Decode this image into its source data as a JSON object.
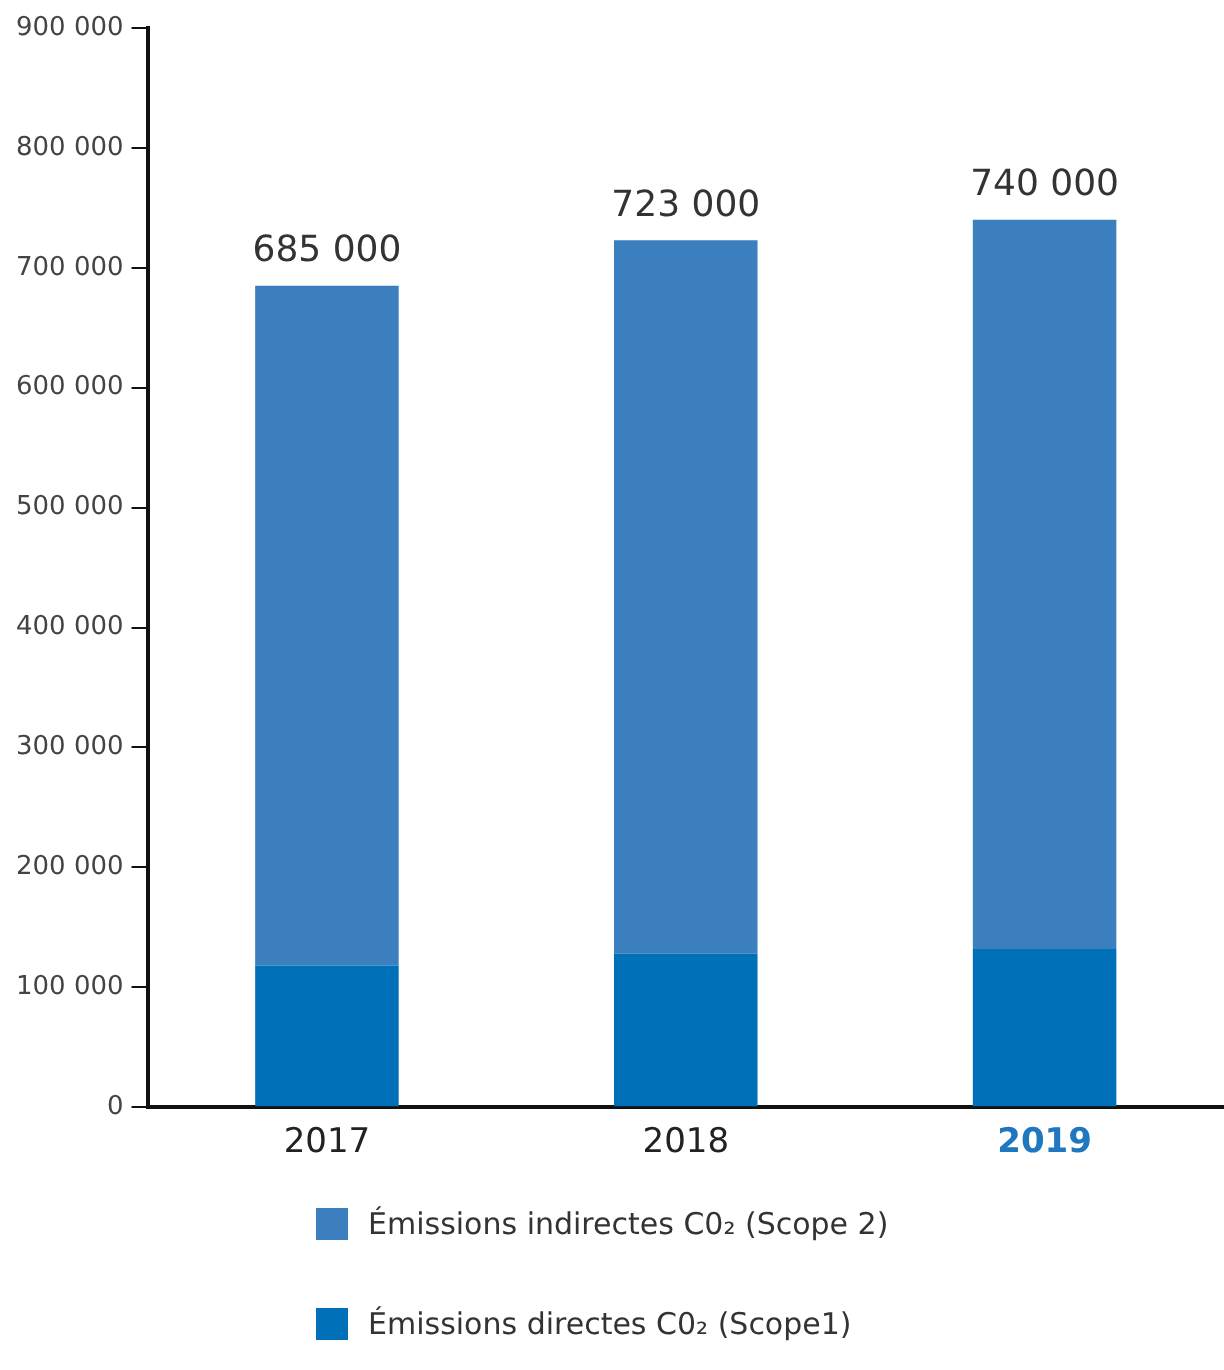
{
  "chart_data": {
    "type": "bar",
    "stacked": true,
    "categories": [
      "2017",
      "2018",
      "2019"
    ],
    "series": [
      {
        "name": "Émissions directes C0₂ (Scope1)",
        "color": "#0070b8",
        "values": [
          118000,
          128000,
          132000
        ]
      },
      {
        "name": "Émissions indirectes C0₂ (Scope 2)",
        "color": "#3b7fbf",
        "values": [
          567000,
          595000,
          608000
        ]
      }
    ],
    "totals": [
      "685 000",
      "723 000",
      "740 000"
    ],
    "ylim": [
      0,
      900000
    ],
    "yticks": [
      0,
      {
        "value": 100000,
        "label": "100 000"
      },
      {
        "value": 200000,
        "label": "200 000"
      },
      {
        "value": 300000,
        "label": "300 000"
      },
      {
        "value": 400000,
        "label": "400 000"
      },
      {
        "value": 500000,
        "label": "500 000"
      },
      {
        "value": 600000,
        "label": "600 000"
      },
      {
        "value": 700000,
        "label": "700 000"
      },
      {
        "value": 800000,
        "label": "800 000"
      },
      {
        "value": 900000,
        "label": "900 000"
      }
    ],
    "grid": false,
    "legend": "bottom"
  }
}
